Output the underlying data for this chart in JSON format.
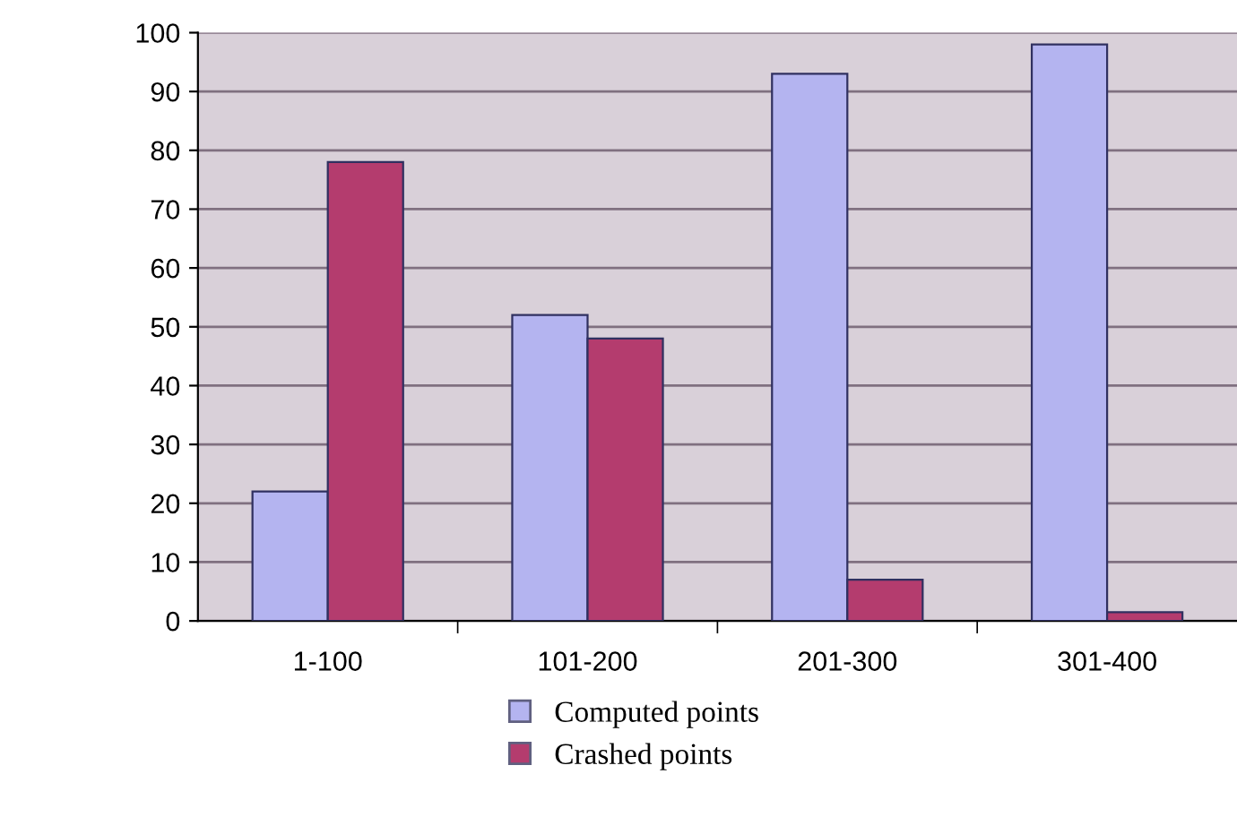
{
  "chart_data": {
    "type": "bar",
    "categories": [
      "1-100",
      "101-200",
      "201-300",
      "301-400"
    ],
    "series": [
      {
        "name": "Computed points",
        "color": "#b4b4f0",
        "values": [
          22,
          52,
          93,
          98
        ]
      },
      {
        "name": "Crashed points",
        "color": "#b43c6e",
        "values": [
          78,
          48,
          7,
          1.5
        ]
      }
    ],
    "ylim": [
      0,
      100
    ],
    "yticks": [
      0,
      10,
      20,
      30,
      40,
      50,
      60,
      70,
      80,
      90,
      100
    ],
    "grid": "y",
    "legend": "bottom"
  }
}
